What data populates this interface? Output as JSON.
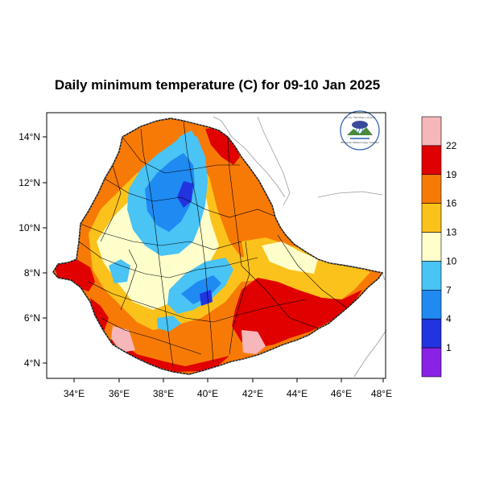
{
  "title": "Daily minimum temperature (C) for 09-10 Jan 2025",
  "x_ticks": [
    "34°E",
    "36°E",
    "38°E",
    "40°E",
    "42°E",
    "44°E",
    "46°E",
    "48°E"
  ],
  "y_ticks": [
    "14°N",
    "12°N",
    "10°N",
    "8°N",
    "6°N",
    "4°N"
  ],
  "colorbar": {
    "labels": [
      "22",
      "19",
      "16",
      "13",
      "10",
      "7",
      "4",
      "1"
    ],
    "colors": [
      "#f7b6b9",
      "#e00000",
      "#f77a06",
      "#fbc21c",
      "#ffffcc",
      "#4ac3f5",
      "#1f8af2",
      "#2233e0",
      "#8a22e6"
    ]
  },
  "logo": {
    "name": "ethiopian-meteorology-institute-logo",
    "text": "ኢትዮጵያ ሜቲዮሮሎጂ ኢንስቲትዩት",
    "subtext": "Ethiopian Meteorology Institute"
  },
  "colors": {
    "land_background": "#f77a06",
    "outside": "#ffffff",
    "border": "#000000",
    "neighbor_border": "#9a9a9a"
  }
}
